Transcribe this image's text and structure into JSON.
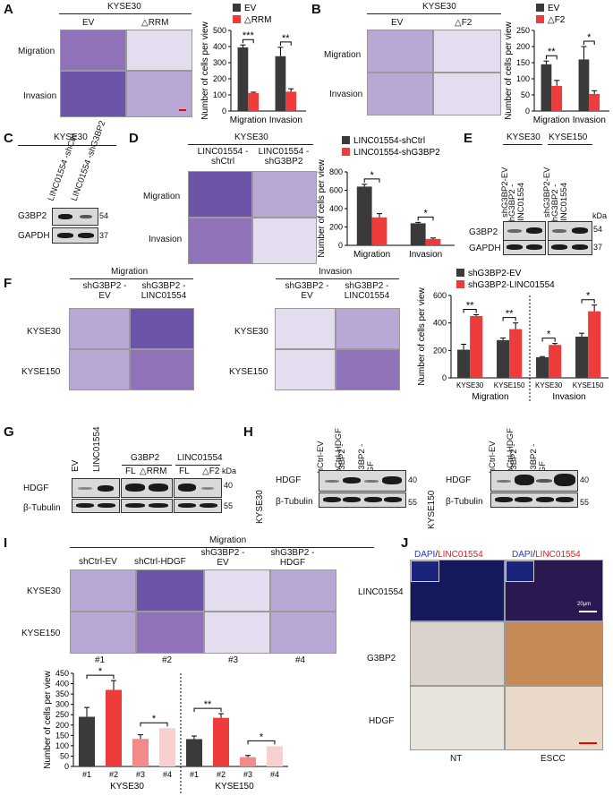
{
  "panels": {
    "A": {
      "letter": "A",
      "cell_line": "KYSE30",
      "col_labels": [
        "EV",
        "△RRM"
      ],
      "row_labels": [
        "Migration",
        "Invasion"
      ],
      "ylabel": "Number of cells per view",
      "legend": [
        "EV",
        "△RRM"
      ],
      "sig": [
        "***",
        "**"
      ]
    },
    "B": {
      "letter": "B",
      "cell_line": "KYSE30",
      "col_labels": [
        "EV",
        "△F2"
      ],
      "row_labels": [
        "Migration",
        "Invasion"
      ],
      "ylabel": "Number of cells per view",
      "legend": [
        "EV",
        "△F2"
      ],
      "sig": [
        "**",
        "*"
      ]
    },
    "C": {
      "letter": "C",
      "cell_line": "KYSE30",
      "lanes": [
        "LINC01554 -shCtrl",
        "LINC01554 -shG3BP2"
      ],
      "rows": [
        "G3BP2",
        "GAPDH"
      ],
      "kda": [
        "54",
        "37"
      ]
    },
    "D": {
      "letter": "D",
      "cell_line": "KYSE30",
      "col_labels": [
        "LINC01554 -shCtrl",
        "LINC01554 -shG3BP2"
      ],
      "row_labels": [
        "Migration",
        "Invasion"
      ],
      "ylabel": "Number of cells per view",
      "legend": [
        "LINC01554-shCtrl",
        "LINC01554-shG3BP2"
      ],
      "sig": [
        "*",
        "*"
      ]
    },
    "E": {
      "letter": "E",
      "cell_lines": [
        "KYSE30",
        "KYSE150"
      ],
      "lanes": [
        "shG3BP2-EV",
        "shG3BP2 -LINC01554",
        "shG3BP2-EV",
        "shG3BP2 -LINC01554"
      ],
      "rows": [
        "G3BP2",
        "GAPDH"
      ],
      "kda_unit": "kDa",
      "kda": [
        "54",
        "37"
      ]
    },
    "F": {
      "letter": "F",
      "groups": [
        "Migration",
        "Invasion"
      ],
      "col_labels": [
        "shG3BP2 -EV",
        "shG3BP2 -LINC01554"
      ],
      "row_labels": [
        "KYSE30",
        "KYSE150"
      ],
      "ylabel": "Number of cells per view",
      "legend": [
        "shG3BP2-EV",
        "shG3BP2-LINC01554"
      ],
      "sig": [
        "**",
        "**",
        "*",
        "*"
      ]
    },
    "G": {
      "letter": "G",
      "lanes1": [
        "EV",
        "LINC01554"
      ],
      "g3bp2_header": "G3BP2",
      "g3bp2_lanes": [
        "FL",
        "△RRM"
      ],
      "linc_header": "LINC01554",
      "linc_lanes": [
        "FL",
        "△F2"
      ],
      "rows": [
        "HDGF",
        "β-Tubulin"
      ],
      "kda_unit": "kDa",
      "kda": [
        "40",
        "55"
      ]
    },
    "H": {
      "letter": "H",
      "lanes": [
        "shCtrl-EV",
        "shCtrl-HDGF",
        "shG3BP2 -EV",
        "shG3BP2 -HDGF"
      ],
      "cell_lines": [
        "KYSE30",
        "KYSE150"
      ],
      "rows": [
        "HDGF",
        "β-Tubulin"
      ],
      "kda": [
        "40",
        "55"
      ]
    },
    "I": {
      "letter": "I",
      "title": "Migration",
      "col_labels": [
        "shCtrl-EV",
        "shCtrl-HDGF",
        "shG3BP2 -EV",
        "shG3BP2 -HDGF"
      ],
      "row_labels": [
        "KYSE30",
        "KYSE150"
      ],
      "numbers": [
        "#1",
        "#2",
        "#3",
        "#4"
      ],
      "ylabel": "Number of cells per view",
      "group_labels": [
        "KYSE30",
        "KYSE150"
      ],
      "sig": [
        "*",
        "*",
        "**",
        "*"
      ]
    },
    "J": {
      "letter": "J",
      "col_header_dapi": "DAPI",
      "col_header_sep": "/",
      "col_header_linc": "LINC01554",
      "row_labels": [
        "LINC01554",
        "G3BP2",
        "HDGF"
      ],
      "col_labels": [
        "NT",
        "ESCC"
      ],
      "scale": "20μm"
    }
  },
  "chart_data": [
    {
      "type": "bar",
      "panel": "A",
      "categories": [
        "Migration",
        "Invasion"
      ],
      "series": [
        {
          "name": "EV",
          "values": [
            395,
            340
          ],
          "errors": [
            15,
            55
          ],
          "color": "#3a3a3a"
        },
        {
          "name": "△RRM",
          "values": [
            112,
            120
          ],
          "errors": [
            5,
            18
          ],
          "color": "#ee3b3b"
        }
      ],
      "ylabel": "Number of cells per view",
      "ylim": [
        0,
        500
      ],
      "yticks": [
        0,
        100,
        200,
        300,
        400,
        500
      ],
      "ytick_labels": [
        "0",
        "100",
        "200",
        "300",
        "400",
        "500"
      ]
    },
    {
      "type": "bar",
      "panel": "B",
      "categories": [
        "Migration",
        "Invasion"
      ],
      "series": [
        {
          "name": "EV",
          "values": [
            145,
            160
          ],
          "errors": [
            10,
            40
          ],
          "color": "#3a3a3a"
        },
        {
          "name": "△F2",
          "values": [
            78,
            53
          ],
          "errors": [
            17,
            10
          ],
          "color": "#ee3b3b"
        }
      ],
      "ylabel": "Number of cells per view",
      "ylim": [
        0,
        250
      ],
      "yticks": [
        0,
        50,
        100,
        150,
        200,
        250
      ],
      "ytick_labels": [
        "0",
        "50",
        "100",
        "150",
        "200",
        "250"
      ]
    },
    {
      "type": "bar",
      "panel": "D",
      "categories": [
        "Migration",
        "Invasion"
      ],
      "series": [
        {
          "name": "LINC01554-shCtrl",
          "values": [
            640,
            240
          ],
          "errors": [
            25,
            10
          ],
          "color": "#3a3a3a"
        },
        {
          "name": "LINC01554-shG3BP2",
          "values": [
            305,
            70
          ],
          "errors": [
            40,
            10
          ],
          "color": "#ee3b3b"
        }
      ],
      "ylabel": "Number of cells per view",
      "ylim": [
        0,
        800
      ],
      "yticks": [
        0,
        200,
        400,
        600,
        800
      ],
      "ytick_labels": [
        "0",
        "200",
        "400",
        "600",
        "800"
      ]
    },
    {
      "type": "bar",
      "panel": "F",
      "categories": [
        "KYSE30",
        "KYSE150",
        "KYSE30",
        "KYSE150"
      ],
      "groups": [
        "Migration",
        "Invasion"
      ],
      "series": [
        {
          "name": "shG3BP2-EV",
          "values": [
            205,
            275,
            150,
            300
          ],
          "errors": [
            40,
            15,
            5,
            25
          ],
          "color": "#3a3a3a"
        },
        {
          "name": "shG3BP2-LINC01554",
          "values": [
            450,
            355,
            240,
            485
          ],
          "errors": [
            10,
            45,
            10,
            45
          ],
          "color": "#ee3b3b"
        }
      ],
      "ylabel": "Number of cells per view",
      "ylim": [
        0,
        600
      ],
      "yticks": [
        0,
        200,
        400,
        600
      ],
      "ytick_labels": [
        "0",
        "200",
        "400",
        "600"
      ]
    },
    {
      "type": "bar",
      "panel": "I",
      "categories": [
        "#1",
        "#2",
        "#3",
        "#4",
        "#1",
        "#2",
        "#3",
        "#4"
      ],
      "groups": [
        "KYSE30",
        "KYSE150"
      ],
      "series": [
        {
          "name": "",
          "values": [
            240,
            370,
            133,
            185,
            132,
            235,
            45,
            98
          ],
          "errors": [
            45,
            45,
            20,
            0,
            15,
            20,
            8,
            0
          ]
        }
      ],
      "colors": [
        "#3a3a3a",
        "#ee3b3b",
        "#f28a8a",
        "#f9d0d0",
        "#3a3a3a",
        "#ee3b3b",
        "#f28a8a",
        "#f9d0d0"
      ],
      "ylabel": "Number of cells per view",
      "ylim": [
        0,
        450
      ],
      "yticks": [
        0,
        50,
        100,
        150,
        200,
        250,
        300,
        350,
        400,
        450
      ],
      "ytick_labels": [
        "0",
        "50",
        "100",
        "150",
        "200",
        "250",
        "300",
        "350",
        "400",
        "450"
      ]
    }
  ]
}
